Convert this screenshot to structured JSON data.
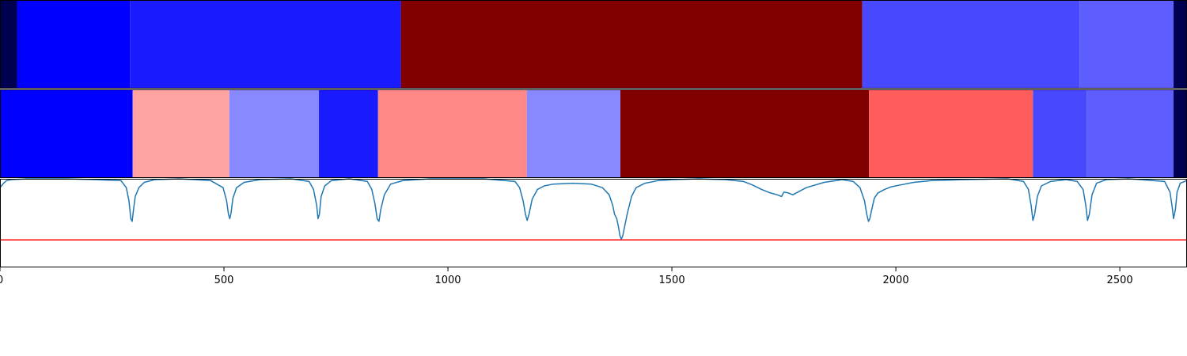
{
  "chart_data": [
    {
      "type": "heatmap",
      "title": "",
      "xlabel": "",
      "ylabel": "",
      "xlim": [
        0,
        2650
      ],
      "segments": [
        {
          "start": 0,
          "end": 38,
          "color": "#000050"
        },
        {
          "start": 38,
          "end": 290,
          "color": "#0000ff"
        },
        {
          "start": 290,
          "end": 895,
          "color": "#1a1aff"
        },
        {
          "start": 895,
          "end": 1925,
          "color": "#800000"
        },
        {
          "start": 1925,
          "end": 2410,
          "color": "#4848ff"
        },
        {
          "start": 2410,
          "end": 2620,
          "color": "#5e5eff"
        },
        {
          "start": 2620,
          "end": 2650,
          "color": "#000050"
        }
      ]
    },
    {
      "type": "heatmap",
      "title": "",
      "xlabel": "",
      "ylabel": "",
      "xlim": [
        0,
        2650
      ],
      "segments": [
        {
          "start": 0,
          "end": 296,
          "color": "#0000ff"
        },
        {
          "start": 296,
          "end": 512,
          "color": "#ffa2a2"
        },
        {
          "start": 512,
          "end": 712,
          "color": "#8888ff"
        },
        {
          "start": 712,
          "end": 844,
          "color": "#1a1aff"
        },
        {
          "start": 844,
          "end": 1176,
          "color": "#ff8888"
        },
        {
          "start": 1176,
          "end": 1385,
          "color": "#8888ff"
        },
        {
          "start": 1385,
          "end": 1940,
          "color": "#800000"
        },
        {
          "start": 1940,
          "end": 2306,
          "color": "#ff5c5c"
        },
        {
          "start": 2306,
          "end": 2426,
          "color": "#4848ff"
        },
        {
          "start": 2426,
          "end": 2620,
          "color": "#5e5eff"
        },
        {
          "start": 2620,
          "end": 2650,
          "color": "#000050"
        }
      ]
    },
    {
      "type": "line",
      "title": "",
      "xlabel": "",
      "ylabel": "",
      "xlim": [
        0,
        2650
      ],
      "ylim": [
        0,
        1
      ],
      "grid": false,
      "x_ticks": [
        0,
        500,
        1000,
        1500,
        2000,
        2500
      ],
      "x_tick_labels": [
        "0",
        "500",
        "1000",
        "1500",
        "2000",
        "2500"
      ],
      "threshold": {
        "value": 0.31,
        "color": "#ff0000"
      },
      "series": [
        {
          "color": "#1f77b4",
          "x": [
            0,
            8,
            15,
            25,
            60,
            150,
            270,
            282,
            288,
            292,
            295,
            298,
            302,
            310,
            322,
            345,
            400,
            470,
            498,
            506,
            510,
            513,
            516,
            520,
            528,
            545,
            580,
            650,
            690,
            700,
            707,
            710,
            713,
            717,
            725,
            740,
            780,
            820,
            830,
            837,
            842,
            846,
            850,
            858,
            872,
            900,
            960,
            1080,
            1150,
            1160,
            1168,
            1173,
            1177,
            1181,
            1188,
            1200,
            1215,
            1235,
            1280,
            1320,
            1345,
            1360,
            1368,
            1372,
            1377,
            1381,
            1384,
            1387,
            1390,
            1394,
            1400,
            1410,
            1420,
            1440,
            1470,
            1500,
            1560,
            1620,
            1660,
            1680,
            1700,
            1710,
            1720,
            1735,
            1745,
            1750,
            1760,
            1770,
            1785,
            1800,
            1840,
            1880,
            1905,
            1920,
            1930,
            1935,
            1939,
            1942,
            1946,
            1952,
            1960,
            1975,
            1990,
            2010,
            2040,
            2080,
            2150,
            2250,
            2285,
            2296,
            2302,
            2306,
            2310,
            2316,
            2325,
            2345,
            2380,
            2405,
            2418,
            2424,
            2428,
            2432,
            2438,
            2448,
            2470,
            2520,
            2600,
            2612,
            2617,
            2620,
            2624,
            2628,
            2635,
            2650
          ],
          "y": [
            0.9,
            0.95,
            0.98,
            0.99,
            1.0,
            1.0,
            0.98,
            0.9,
            0.75,
            0.55,
            0.52,
            0.65,
            0.8,
            0.9,
            0.96,
            0.99,
            1.0,
            0.98,
            0.9,
            0.75,
            0.6,
            0.55,
            0.62,
            0.78,
            0.9,
            0.96,
            0.99,
            1.0,
            0.97,
            0.88,
            0.7,
            0.55,
            0.6,
            0.8,
            0.92,
            0.98,
            1.0,
            0.97,
            0.88,
            0.72,
            0.55,
            0.52,
            0.65,
            0.82,
            0.94,
            0.98,
            1.0,
            1.0,
            0.97,
            0.9,
            0.75,
            0.6,
            0.53,
            0.6,
            0.77,
            0.88,
            0.92,
            0.94,
            0.95,
            0.94,
            0.9,
            0.82,
            0.7,
            0.6,
            0.55,
            0.45,
            0.36,
            0.32,
            0.35,
            0.45,
            0.6,
            0.8,
            0.9,
            0.95,
            0.98,
            0.99,
            1.0,
            0.99,
            0.97,
            0.93,
            0.88,
            0.86,
            0.84,
            0.82,
            0.8,
            0.85,
            0.84,
            0.82,
            0.86,
            0.9,
            0.96,
            0.99,
            0.97,
            0.9,
            0.75,
            0.6,
            0.52,
            0.55,
            0.65,
            0.78,
            0.84,
            0.88,
            0.91,
            0.93,
            0.96,
            0.98,
            0.99,
            1.0,
            0.97,
            0.88,
            0.7,
            0.53,
            0.6,
            0.8,
            0.92,
            0.97,
            0.99,
            0.97,
            0.88,
            0.7,
            0.53,
            0.6,
            0.82,
            0.95,
            0.99,
            1.0,
            0.97,
            0.85,
            0.68,
            0.55,
            0.65,
            0.85,
            0.95,
            0.98
          ]
        }
      ]
    }
  ]
}
